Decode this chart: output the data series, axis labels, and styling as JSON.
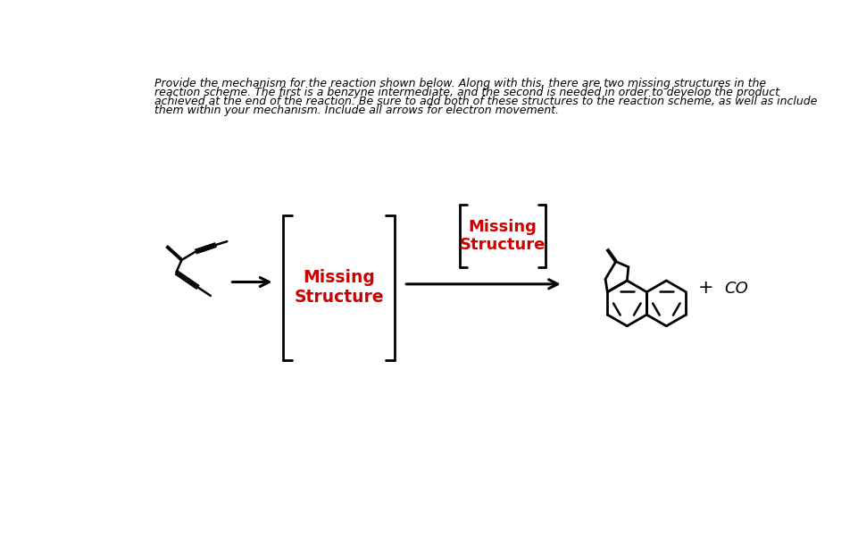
{
  "title_text_line1": "Provide the mechanism for the reaction shown below. Along with this, there are two missing structures in the",
  "title_text_line2": "reaction scheme. The first is a benzyne intermediate, and the second is needed in order to develop the product",
  "title_text_line3": "achieved at the end of the reaction. Be sure to add both of these structures to the reaction scheme, as well as include",
  "title_text_line4": "them within your mechanism. Include all arrows for electron movement.",
  "missing_structure_color": "#CC0000",
  "background_color": "#ffffff",
  "text_color": "#000000",
  "arrow_color": "#000000",
  "co_text": "CO",
  "plus_text": "+",
  "missing_text_1": "Missing\nStructure",
  "missing_text_2": "Missing\nStructure",
  "title_fontsize": 9.0
}
